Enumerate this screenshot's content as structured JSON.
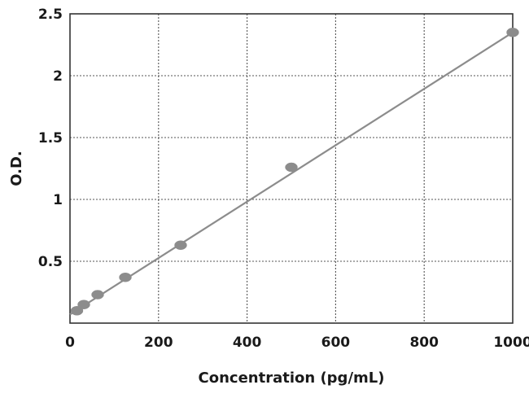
{
  "chart_data": {
    "type": "scatter",
    "title": "",
    "xlabel": "Concentration (pg/mL)",
    "ylabel": "O.D.",
    "xlim": [
      0,
      1000
    ],
    "ylim": [
      0,
      2.5
    ],
    "x_ticks": [
      0,
      200,
      400,
      600,
      800,
      1000
    ],
    "y_ticks": [
      0.5,
      1,
      1.5,
      2,
      2.5
    ],
    "x_tick_labels": [
      "0",
      "200",
      "400",
      "600",
      "800",
      "1000"
    ],
    "y_tick_labels": [
      "0.5",
      "1",
      "1.5",
      "2",
      "2.5"
    ],
    "grid": true,
    "legend": "none",
    "series": [
      {
        "x": [
          15.6,
          31.25,
          62.5,
          125,
          250,
          500,
          1000
        ],
        "y": [
          0.1,
          0.15,
          0.23,
          0.37,
          0.63,
          1.26,
          2.35
        ],
        "marker_color": "#8c8c8c",
        "trendline": {
          "type": "linear",
          "x": [
            0,
            1000
          ],
          "y": [
            0.07,
            2.35
          ],
          "color": "#8c8c8c"
        }
      }
    ]
  }
}
